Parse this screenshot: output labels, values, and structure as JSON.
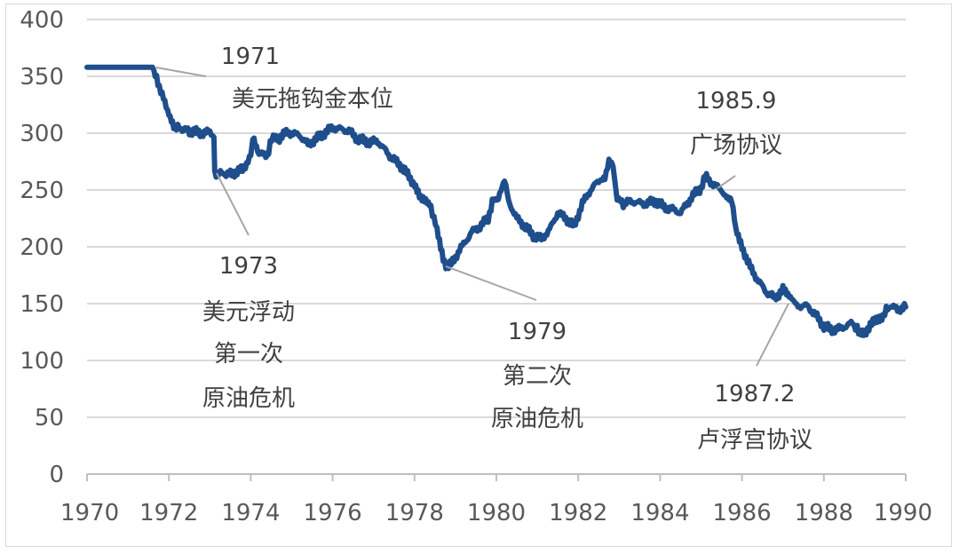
{
  "chart_data": {
    "type": "line",
    "title": "",
    "xlabel": "",
    "ylabel": "",
    "xlim": [
      1970,
      1990
    ],
    "ylim": [
      0,
      400
    ],
    "x_ticks": [
      "1970",
      "1972",
      "1974",
      "1976",
      "1978",
      "1980",
      "1982",
      "1984",
      "1986",
      "1988",
      "1990"
    ],
    "y_ticks": [
      "0",
      "50",
      "100",
      "150",
      "200",
      "250",
      "300",
      "350",
      "400"
    ],
    "grid": "horizontal",
    "legend": "none",
    "series": [
      {
        "name": "",
        "color": "#1f4e8c",
        "points": [
          [
            1970.0,
            358
          ],
          [
            1971.6,
            358
          ],
          [
            1971.7,
            350
          ],
          [
            1971.8,
            336
          ],
          [
            1972.0,
            318
          ],
          [
            1972.15,
            305
          ],
          [
            1972.5,
            302
          ],
          [
            1972.8,
            300
          ],
          [
            1973.0,
            301
          ],
          [
            1973.1,
            298
          ],
          [
            1973.12,
            265
          ],
          [
            1973.5,
            264
          ],
          [
            1973.8,
            268
          ],
          [
            1974.0,
            280
          ],
          [
            1974.05,
            298
          ],
          [
            1974.2,
            282
          ],
          [
            1974.4,
            280
          ],
          [
            1974.55,
            299
          ],
          [
            1974.7,
            296
          ],
          [
            1974.9,
            301
          ],
          [
            1975.2,
            298
          ],
          [
            1975.4,
            290
          ],
          [
            1975.8,
            300
          ],
          [
            1976.0,
            305
          ],
          [
            1976.4,
            302
          ],
          [
            1976.6,
            295
          ],
          [
            1976.9,
            292
          ],
          [
            1977.1,
            293
          ],
          [
            1977.4,
            280
          ],
          [
            1977.7,
            270
          ],
          [
            1978.0,
            255
          ],
          [
            1978.15,
            243
          ],
          [
            1978.4,
            235
          ],
          [
            1978.55,
            215
          ],
          [
            1978.7,
            190
          ],
          [
            1978.8,
            182
          ],
          [
            1978.9,
            185
          ],
          [
            1979.1,
            197
          ],
          [
            1979.4,
            213
          ],
          [
            1979.6,
            218
          ],
          [
            1979.8,
            225
          ],
          [
            1979.9,
            240
          ],
          [
            1980.05,
            243
          ],
          [
            1980.2,
            258
          ],
          [
            1980.3,
            240
          ],
          [
            1980.5,
            225
          ],
          [
            1980.7,
            218
          ],
          [
            1980.9,
            210
          ],
          [
            1981.1,
            207
          ],
          [
            1981.3,
            215
          ],
          [
            1981.5,
            230
          ],
          [
            1981.7,
            225
          ],
          [
            1981.9,
            218
          ],
          [
            1982.1,
            238
          ],
          [
            1982.3,
            250
          ],
          [
            1982.5,
            258
          ],
          [
            1982.65,
            262
          ],
          [
            1982.75,
            276
          ],
          [
            1982.85,
            270
          ],
          [
            1982.95,
            243
          ],
          [
            1983.1,
            238
          ],
          [
            1983.3,
            240
          ],
          [
            1983.6,
            238
          ],
          [
            1983.9,
            240
          ],
          [
            1984.1,
            235
          ],
          [
            1984.3,
            233
          ],
          [
            1984.5,
            230
          ],
          [
            1984.8,
            245
          ],
          [
            1985.0,
            252
          ],
          [
            1985.1,
            262
          ],
          [
            1985.3,
            255
          ],
          [
            1985.5,
            250
          ],
          [
            1985.75,
            240
          ],
          [
            1985.85,
            215
          ],
          [
            1986.0,
            200
          ],
          [
            1986.2,
            182
          ],
          [
            1986.4,
            170
          ],
          [
            1986.6,
            160
          ],
          [
            1986.8,
            155
          ],
          [
            1987.0,
            162
          ],
          [
            1987.15,
            155
          ],
          [
            1987.4,
            148
          ],
          [
            1987.6,
            148
          ],
          [
            1987.8,
            140
          ],
          [
            1988.0,
            130
          ],
          [
            1988.2,
            127
          ],
          [
            1988.4,
            128
          ],
          [
            1988.7,
            133
          ],
          [
            1988.85,
            125
          ],
          [
            1989.0,
            125
          ],
          [
            1989.2,
            133
          ],
          [
            1989.45,
            140
          ],
          [
            1989.6,
            148
          ],
          [
            1989.8,
            145
          ],
          [
            1990.0,
            147
          ]
        ]
      }
    ],
    "annotations": [
      {
        "lines": [
          "1971",
          "美元拖钩金本位"
        ]
      },
      {
        "lines": [
          "1973",
          "美元浮动",
          "第一次",
          "原油危机"
        ]
      },
      {
        "lines": [
          "1979",
          "第二次",
          "原油危机"
        ]
      },
      {
        "lines": [
          "1985.9",
          "广场协议"
        ]
      },
      {
        "lines": [
          "1987.2",
          "卢浮宫协议"
        ]
      }
    ]
  }
}
